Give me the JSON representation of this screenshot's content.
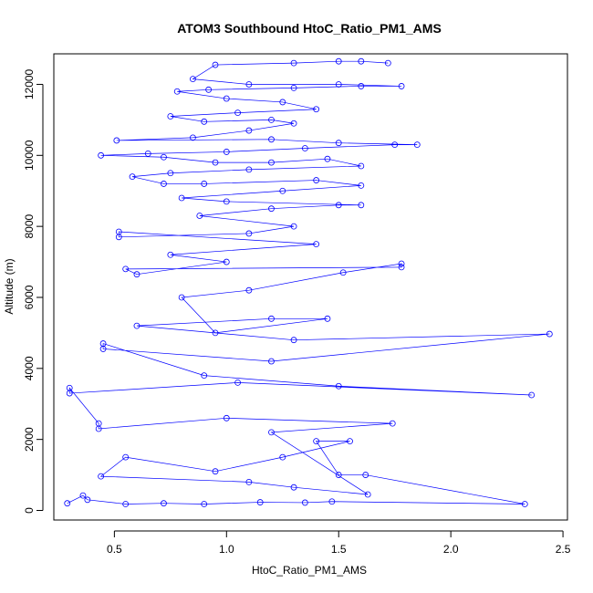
{
  "chart_data": {
    "type": "scatter",
    "title": "ATOM3 Southbound HtoC_Ratio_PM1_AMS",
    "xlabel": "HtoC_Ratio_PM1_AMS",
    "ylabel": "Altitude (m)",
    "xlim": [
      0.23,
      2.52
    ],
    "ylim": [
      -270,
      12860
    ],
    "x_ticks": [
      0.5,
      1.0,
      1.5,
      2.0,
      2.5
    ],
    "x_tick_labels": [
      "0.5",
      "1.0",
      "1.5",
      "2.0",
      "2.5"
    ],
    "y_ticks": [
      0,
      2000,
      4000,
      6000,
      8000,
      10000,
      12000
    ],
    "y_tick_labels": [
      "0",
      "2000",
      "4000",
      "6000",
      "8000",
      "10000",
      "12000"
    ],
    "grid": false,
    "marker": "open-circle",
    "connected": true,
    "series": [
      {
        "color": "#0000ff",
        "points": [
          [
            0.29,
            200
          ],
          [
            0.36,
            420
          ],
          [
            0.38,
            300
          ],
          [
            0.55,
            180
          ],
          [
            0.72,
            200
          ],
          [
            0.9,
            180
          ],
          [
            1.15,
            230
          ],
          [
            1.35,
            220
          ],
          [
            1.47,
            250
          ],
          [
            2.33,
            180
          ],
          [
            1.62,
            1000
          ],
          [
            1.5,
            1000
          ],
          [
            1.4,
            1950
          ],
          [
            1.55,
            1950
          ],
          [
            1.25,
            1500
          ],
          [
            0.95,
            1100
          ],
          [
            0.55,
            1500
          ],
          [
            0.44,
            960
          ],
          [
            1.1,
            800
          ],
          [
            1.3,
            650
          ],
          [
            1.63,
            450
          ],
          [
            1.2,
            2200
          ],
          [
            1.74,
            2450
          ],
          [
            1.0,
            2600
          ],
          [
            0.43,
            2300
          ],
          [
            0.43,
            2450
          ],
          [
            0.3,
            3450
          ],
          [
            0.3,
            3300
          ],
          [
            1.05,
            3600
          ],
          [
            2.36,
            3250
          ],
          [
            1.5,
            3500
          ],
          [
            0.9,
            3800
          ],
          [
            0.45,
            4700
          ],
          [
            0.45,
            4550
          ],
          [
            1.2,
            4200
          ],
          [
            2.44,
            4970
          ],
          [
            1.3,
            4800
          ],
          [
            0.6,
            5200
          ],
          [
            1.2,
            5400
          ],
          [
            1.45,
            5400
          ],
          [
            0.95,
            5000
          ],
          [
            0.8,
            6000
          ],
          [
            1.1,
            6200
          ],
          [
            1.52,
            6700
          ],
          [
            1.78,
            6950
          ],
          [
            1.78,
            6850
          ],
          [
            0.55,
            6800
          ],
          [
            0.6,
            6650
          ],
          [
            1.0,
            7000
          ],
          [
            0.75,
            7200
          ],
          [
            1.4,
            7500
          ],
          [
            0.52,
            7850
          ],
          [
            0.52,
            7700
          ],
          [
            1.1,
            7800
          ],
          [
            1.3,
            8000
          ],
          [
            0.88,
            8300
          ],
          [
            1.2,
            8500
          ],
          [
            1.5,
            8600
          ],
          [
            1.6,
            8600
          ],
          [
            1.0,
            8700
          ],
          [
            0.8,
            8800
          ],
          [
            1.25,
            9000
          ],
          [
            1.6,
            9150
          ],
          [
            1.4,
            9300
          ],
          [
            0.9,
            9200
          ],
          [
            0.72,
            9200
          ],
          [
            0.58,
            9400
          ],
          [
            0.75,
            9500
          ],
          [
            1.1,
            9600
          ],
          [
            1.6,
            9700
          ],
          [
            1.45,
            9900
          ],
          [
            1.2,
            9800
          ],
          [
            0.95,
            9800
          ],
          [
            0.72,
            9950
          ],
          [
            0.44,
            10000
          ],
          [
            0.65,
            10050
          ],
          [
            1.0,
            10100
          ],
          [
            1.35,
            10200
          ],
          [
            1.75,
            10300
          ],
          [
            1.85,
            10300
          ],
          [
            1.5,
            10350
          ],
          [
            1.2,
            10450
          ],
          [
            0.51,
            10420
          ],
          [
            0.85,
            10500
          ],
          [
            1.1,
            10700
          ],
          [
            1.3,
            10900
          ],
          [
            1.2,
            11000
          ],
          [
            0.9,
            10950
          ],
          [
            0.75,
            11100
          ],
          [
            1.05,
            11200
          ],
          [
            1.4,
            11300
          ],
          [
            1.25,
            11500
          ],
          [
            1.0,
            11600
          ],
          [
            0.78,
            11800
          ],
          [
            0.92,
            11850
          ],
          [
            1.3,
            11900
          ],
          [
            1.6,
            11950
          ],
          [
            1.78,
            11950
          ],
          [
            1.5,
            12000
          ],
          [
            1.1,
            12000
          ],
          [
            0.85,
            12150
          ],
          [
            0.95,
            12550
          ],
          [
            1.3,
            12600
          ],
          [
            1.5,
            12650
          ],
          [
            1.6,
            12650
          ],
          [
            1.72,
            12600
          ]
        ]
      }
    ]
  }
}
